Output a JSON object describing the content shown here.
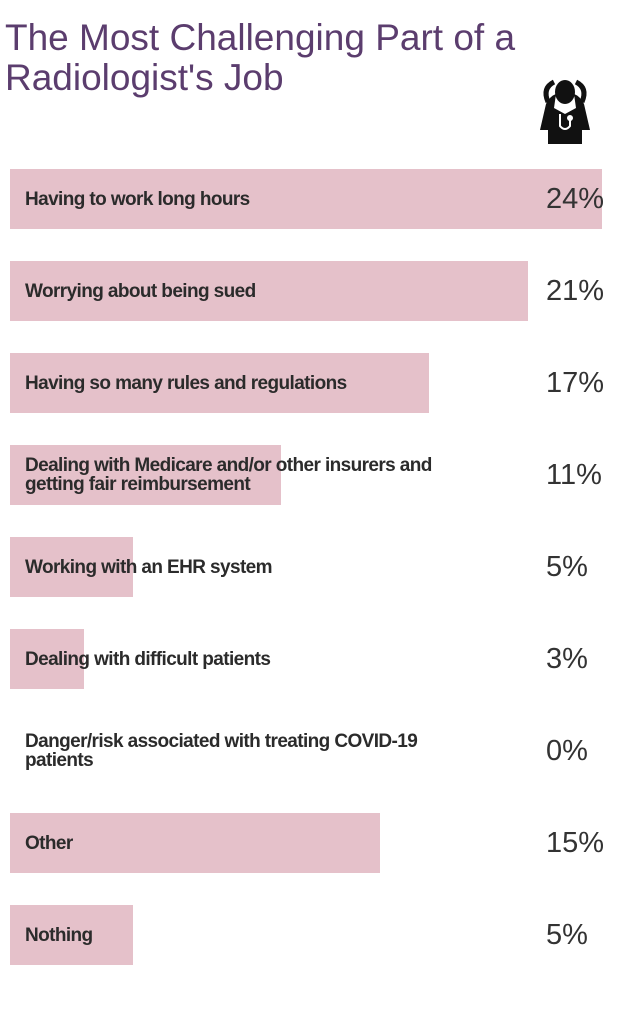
{
  "chart_data": {
    "type": "bar",
    "title": "The Most Challenging Part of a Radiologist's Job",
    "categories": [
      "Having to work long hours",
      "Worrying about being sued",
      "Having so many rules and regulations",
      "Dealing with Medicare and/or other insurers and getting fair reimbursement",
      "Working with an EHR system",
      "Dealing with difficult patients",
      "Danger/risk associated with treating COVID-19 patients",
      "Other",
      "Nothing"
    ],
    "values": [
      24,
      21,
      17,
      11,
      5,
      3,
      0,
      15,
      5
    ],
    "value_labels": [
      "24%",
      "21%",
      "17%",
      "11%",
      "5%",
      "3%",
      "0%",
      "15%",
      "5%"
    ],
    "color": "#e5c1ca"
  }
}
